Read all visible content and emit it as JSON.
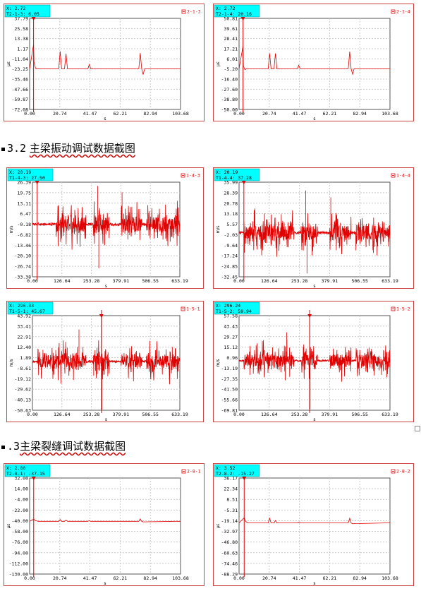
{
  "sections": [
    {
      "number": "3.2",
      "title": "主梁振动调试数据截图"
    },
    {
      "number": ".3",
      "title": "主梁裂缝调试数据截图"
    }
  ],
  "colors": {
    "trace": "#e00000",
    "cursor_box": "#00ffff",
    "panel_border": "#cc4444",
    "grid": "#c8c8c8"
  },
  "charts": [
    {
      "id": "c1",
      "cursor": {
        "x_label": "X: 2.72",
        "y_label": "T2-1-3: 6.05",
        "x": 2.72
      },
      "legend": "2-1-3",
      "ylabel": "με",
      "xlabel": "s",
      "yticks": [
        "37.79",
        "25.58",
        "13.38",
        "1.17",
        "-11.04",
        "-23.25",
        "-35.46",
        "-47.66",
        "-59.87",
        "-72.08"
      ],
      "xticks": [
        "0.00",
        "20.74",
        "41.47",
        "62.21",
        "82.94",
        "103.68"
      ],
      "chart_data": {
        "type": "line",
        "xlim": [
          0,
          103.68
        ],
        "ylim": [
          -72.08,
          37.79
        ],
        "series": [
          {
            "values_x": [
              0,
              2.72,
              3,
              4,
              5,
              6,
              7,
              8,
              10,
              20,
              21,
              22,
              24,
              25,
              26,
              28,
              40,
              41,
              42,
              43,
              75,
              76,
              77,
              78,
              79,
              100,
              103.68
            ],
            "values_y": [
              -23.0,
              6.05,
              -15,
              -22,
              -23,
              -23,
              -23,
              -23,
              -23,
              -23,
              -2,
              -23,
              -23,
              -5,
              -23,
              -23,
              -23,
              -18,
              -23,
              -23,
              -23,
              -4,
              -23,
              -30,
              -23,
              -23,
              -23
            ]
          }
        ]
      }
    },
    {
      "id": "c2",
      "cursor": {
        "x_label": "X: 2.72",
        "y_label": "T2-1-4: 20.16",
        "x": 2.72
      },
      "legend": "2-1-4",
      "ylabel": "με",
      "xlabel": "s",
      "yticks": [
        "50.81",
        "39.61",
        "28.41",
        "17.21",
        "6.01",
        "-5.20",
        "-16.40",
        "-27.60",
        "-38.80",
        "-50.00"
      ],
      "xticks": [
        "0.00",
        "20.74",
        "41.47",
        "62.21",
        "82.94",
        "103.68"
      ],
      "chart_data": {
        "type": "line",
        "xlim": [
          0,
          103.68
        ],
        "ylim": [
          -50.0,
          50.81
        ],
        "series": [
          {
            "values_x": [
              0,
              2.72,
              3,
              4,
              5,
              6,
              7,
              8,
              10,
              20,
              21,
              22,
              24,
              25,
              26,
              28,
              40,
              41,
              42,
              43,
              75,
              76,
              77,
              78,
              79,
              100,
              103.68
            ],
            "values_y": [
              -5,
              20.16,
              -2,
              -6,
              -5,
              -5,
              -5,
              -5,
              -5,
              -5,
              12,
              -5,
              -5,
              12,
              -5,
              -5,
              -5,
              -1,
              -5,
              -5,
              -5,
              14,
              -5,
              -11,
              -5,
              -5,
              -5
            ]
          }
        ]
      }
    },
    {
      "id": "c3",
      "cursor": {
        "x_label": "X: 20.19",
        "y_label": "T1-4-3: 27.50",
        "x": 20.19
      },
      "legend": "1-4-3",
      "ylabel": "m/s",
      "xlabel": "s",
      "yticks": [
        "26.39",
        "19.75",
        "13.11",
        "6.47",
        "-0.18",
        "-6.82",
        "-13.46",
        "-20.10",
        "-26.74",
        "-33.38"
      ],
      "xticks": [
        "0.00",
        "126.64",
        "253.28",
        "379.91",
        "506.55",
        "633.19"
      ],
      "chart_data": {
        "type": "line",
        "xlim": [
          0,
          633.19
        ],
        "ylim": [
          -33.38,
          26.39
        ],
        "noise": {
          "base": -0.18,
          "amp": 18,
          "seed": 3,
          "bursts": [
            [
              100,
              230
            ],
            [
              260,
              330
            ],
            [
              380,
              470
            ],
            [
              490,
              633
            ]
          ],
          "spikes": [
            [
              280,
              24
            ],
            [
              285,
              -28
            ],
            [
              385,
              20
            ]
          ]
        }
      }
    },
    {
      "id": "c4",
      "cursor": {
        "x_label": "X: 20.19",
        "y_label": "T1-4-4: 37.28",
        "x": 20.19
      },
      "legend": "1-4-4",
      "ylabel": "m/s",
      "xlabel": "s",
      "yticks": [
        "35.99",
        "28.39",
        "20.78",
        "13.18",
        "5.57",
        "-2.03",
        "-9.64",
        "-17.24",
        "-24.85",
        "-32.45"
      ],
      "xticks": [
        "0.00",
        "126.64",
        "253.28",
        "379.91",
        "506.55",
        "633.19"
      ],
      "chart_data": {
        "type": "line",
        "xlim": [
          0,
          633.19
        ],
        "ylim": [
          -32.45,
          35.99
        ],
        "noise": {
          "base": -0.5,
          "amp": 20,
          "seed": 7,
          "bursts": [
            [
              20,
              230
            ],
            [
              260,
              330
            ],
            [
              380,
              470
            ],
            [
              490,
              633
            ]
          ],
          "spikes": [
            [
              280,
              30
            ],
            [
              285,
              -30
            ],
            [
              385,
              25
            ]
          ]
        }
      }
    },
    {
      "id": "c5",
      "cursor": {
        "x_label": "X: 296.33",
        "y_label": "T1-5-1: 45.67",
        "x": 296.33
      },
      "legend": "1-5-1",
      "ylabel": "m/s",
      "xlabel": "s",
      "yticks": [
        "43.92",
        "33.41",
        "22.91",
        "12.40",
        "1.89",
        "-8.61",
        "-19.12",
        "-29.62",
        "-40.13",
        "-50.63"
      ],
      "xticks": [
        "0.00",
        "126.64",
        "253.28",
        "379.91",
        "506.55",
        "633.19"
      ],
      "chart_data": {
        "type": "line",
        "xlim": [
          0,
          633.19
        ],
        "ylim": [
          -50.63,
          43.92
        ],
        "noise": {
          "base": -2,
          "amp": 24,
          "seed": 11,
          "bursts": [
            [
              20,
              230
            ],
            [
              260,
              330
            ],
            [
              380,
              470
            ],
            [
              490,
              633
            ]
          ],
          "spikes": [
            [
              296,
              45
            ],
            [
              298,
              -50
            ],
            [
              200,
              30
            ]
          ]
        }
      }
    },
    {
      "id": "c6",
      "cursor": {
        "x_label": "X: 296.24",
        "y_label": "T1-5-2: 59.94",
        "x": 296.24
      },
      "legend": "1-5-2",
      "ylabel": "m/s",
      "xlabel": "s",
      "yticks": [
        "57.58",
        "43.43",
        "29.27",
        "15.12",
        "0.96",
        "-13.19",
        "-27.35",
        "-41.50",
        "-55.66",
        "-69.81"
      ],
      "xticks": [
        "0.00",
        "126.64",
        "253.28",
        "379.91",
        "506.55",
        "633.19"
      ],
      "chart_data": {
        "type": "line",
        "xlim": [
          0,
          633.19
        ],
        "ylim": [
          -69.81,
          57.58
        ],
        "noise": {
          "base": -3,
          "amp": 30,
          "seed": 17,
          "bursts": [
            [
              20,
              230
            ],
            [
              260,
              330
            ],
            [
              380,
              470
            ],
            [
              490,
              633
            ]
          ],
          "spikes": [
            [
              296,
              58
            ],
            [
              298,
              -68
            ],
            [
              200,
              35
            ]
          ]
        }
      }
    },
    {
      "id": "c7",
      "cursor": {
        "x_label": "X: 2.80",
        "y_label": "T2-8-1: -37.15",
        "x": 2.8
      },
      "legend": "2-8-1",
      "ylabel": "με",
      "xlabel": "s",
      "yticks": [
        "32.00",
        "14.00",
        "-4.00",
        "-22.00",
        "-40.00",
        "-58.00",
        "-76.00",
        "-94.00",
        "-112.00",
        "-130.00"
      ],
      "xticks": [
        "0.00",
        "20.74",
        "41.47",
        "62.21",
        "82.94",
        "103.68"
      ],
      "chart_data": {
        "type": "line",
        "xlim": [
          0,
          103.68
        ],
        "ylim": [
          -130.0,
          32.0
        ],
        "series": [
          {
            "values_x": [
              0,
              2.8,
              4,
              6,
              10,
              20,
              21,
              22,
              24,
              25,
              26,
              28,
              40,
              41,
              42,
              75,
              76,
              77,
              78,
              100,
              103.68
            ],
            "values_y": [
              -41,
              -37.15,
              -40,
              -41,
              -41,
              -41,
              -38,
              -41,
              -41,
              -39,
              -41,
              -41,
              -41,
              -40,
              -41,
              -41,
              -37,
              -41,
              -42,
              -41,
              -41
            ]
          }
        ]
      }
    },
    {
      "id": "c8",
      "cursor": {
        "x_label": "X: 3.52",
        "y_label": "T2-8-2: -15.27",
        "x": 3.52
      },
      "legend": "2-8-2",
      "ylabel": "με",
      "xlabel": "s",
      "yticks": [
        "36.17",
        "22.34",
        "8.51",
        "-5.31",
        "-19.14",
        "-32.97",
        "-46.80",
        "-60.63",
        "-74.46",
        "-88.29"
      ],
      "xticks": [
        "0.00",
        "20.74",
        "41.47",
        "62.21",
        "82.94",
        "103.68"
      ],
      "chart_data": {
        "type": "line",
        "xlim": [
          0,
          103.68
        ],
        "ylim": [
          -88.29,
          36.17
        ],
        "series": [
          {
            "values_x": [
              0,
              3.52,
              4.5,
              6,
              10,
              20,
              21,
              22,
              24,
              25,
              26,
              28,
              40,
              41,
              42,
              75,
              76,
              77,
              78,
              100,
              103.68
            ],
            "values_y": [
              -22,
              -15.27,
              -20,
              -22,
              -22,
              -22,
              -16,
              -22,
              -22,
              -19,
              -22,
              -22,
              -22,
              -21,
              -22,
              -22,
              -16,
              -22,
              -23,
              -22,
              -22
            ]
          }
        ]
      }
    }
  ]
}
